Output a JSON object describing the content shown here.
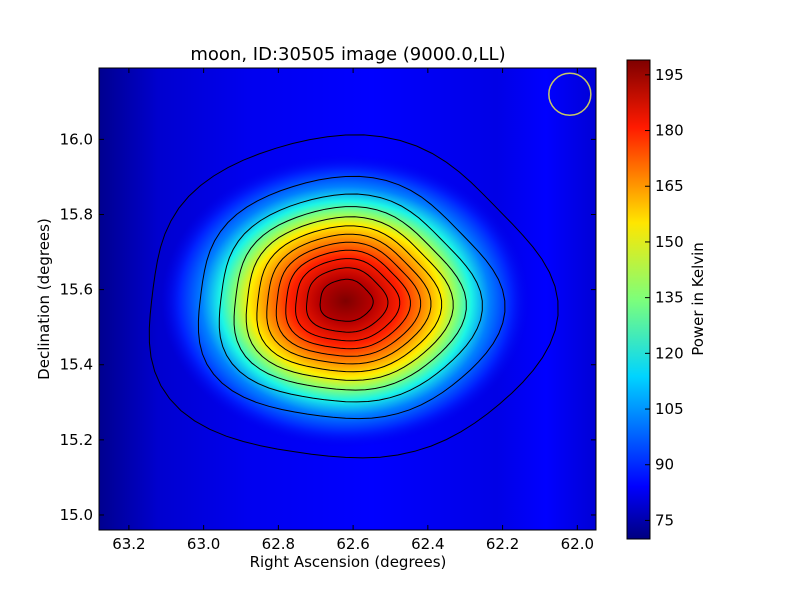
{
  "chart_data": {
    "type": "heatmap",
    "title": "moon, ID:30505 image (9000.0,LL)",
    "xlabel": "Right Ascension (degrees)",
    "ylabel": "Declination (degrees)",
    "xlim": [
      63.28,
      61.95
    ],
    "ylim": [
      14.96,
      16.19
    ],
    "x_ticks": [
      63.2,
      63.0,
      62.8,
      62.6,
      62.4,
      62.2,
      62.0
    ],
    "x_tick_labels": [
      "63.2",
      "63.0",
      "62.8",
      "62.6",
      "62.4",
      "62.2",
      "62.0"
    ],
    "y_ticks": [
      15.0,
      15.2,
      15.4,
      15.6,
      15.8,
      16.0
    ],
    "y_tick_labels": [
      "15.0",
      "15.2",
      "15.4",
      "15.6",
      "15.8",
      "16.0"
    ],
    "source": {
      "center_ra": 62.62,
      "center_dec": 15.57,
      "peak_kelvin": 198,
      "background_kelvin": 78,
      "sigma_ra_deg": 0.19,
      "sigma_dec_deg": 0.15
    },
    "contour_levels_kelvin": [
      80,
      90,
      100,
      110,
      120,
      130,
      140,
      150,
      160,
      170,
      180,
      190
    ],
    "beam_marker": {
      "ra": 62.02,
      "dec": 16.12,
      "shape": "circle",
      "color": "#c8c864"
    },
    "colorbar": {
      "label": "Power in Kelvin",
      "range": [
        70,
        199
      ],
      "ticks": [
        75,
        90,
        105,
        120,
        135,
        150,
        165,
        180,
        195
      ],
      "tick_labels": [
        "75",
        "90",
        "105",
        "120",
        "135",
        "150",
        "165",
        "180",
        "195"
      ],
      "colormap": "jet"
    }
  }
}
